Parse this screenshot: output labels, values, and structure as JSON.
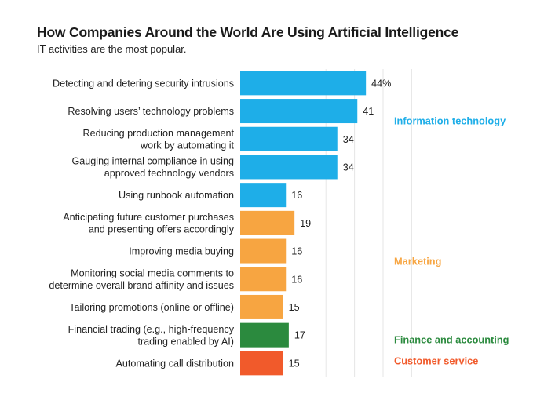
{
  "chart_data": {
    "type": "bar",
    "orientation": "horizontal",
    "title": "How Companies Around the World Are Using Artificial Intelligence",
    "subtitle": "IT activities are the most popular.",
    "xlim": [
      0,
      44
    ],
    "grid": true,
    "value_suffix_first": "%",
    "categories": [
      "Detecting and detering security intrusions",
      "Resolving users’ technology problems",
      "Reducing production management work by automating it",
      "Gauging internal compliance in using approved technology vendors",
      "Using runbook automation",
      "Anticipating future customer purchases and presenting offers accordingly",
      "Improving media buying",
      "Monitoring social media comments to determine overall brand affinity and issues",
      "Tailoring promotions (online or offline)",
      "Financial trading (e.g., high-frequency trading enabled by AI)",
      "Automating call distribution"
    ],
    "category_lines": [
      [
        "Detecting and detering security intrusions"
      ],
      [
        "Resolving users’ technology problems"
      ],
      [
        "Reducing production management",
        "work by automating it"
      ],
      [
        "Gauging internal compliance in using",
        "approved technology vendors"
      ],
      [
        "Using runbook automation"
      ],
      [
        "Anticipating future customer purchases",
        "and presenting offers accordingly"
      ],
      [
        "Improving media buying"
      ],
      [
        "Monitoring social media comments to",
        "determine overall brand affinity and issues"
      ],
      [
        "Tailoring promotions (online or offline)"
      ],
      [
        "Financial trading (e.g., high-frequency",
        "trading enabled by AI)"
      ],
      [
        "Automating call distribution"
      ]
    ],
    "values": [
      44,
      41,
      34,
      34,
      16,
      19,
      16,
      16,
      15,
      17,
      15
    ],
    "groups": [
      {
        "name": "Information technology",
        "color": "#1eaee8",
        "indices": [
          0,
          1,
          2,
          3,
          4
        ]
      },
      {
        "name": "Marketing",
        "color": "#f7a541",
        "indices": [
          5,
          6,
          7,
          8
        ]
      },
      {
        "name": "Finance and accounting",
        "color": "#2b8a3e",
        "indices": [
          9
        ]
      },
      {
        "name": "Customer service",
        "color": "#f15a2b",
        "indices": [
          10
        ]
      }
    ]
  }
}
